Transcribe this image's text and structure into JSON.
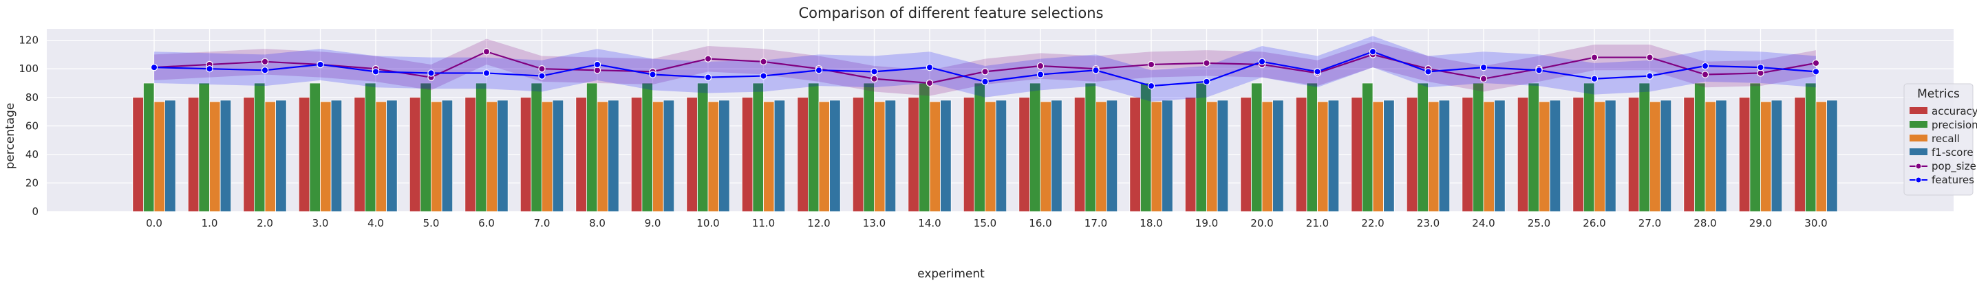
{
  "chart_data": {
    "type": "bar",
    "title": "Comparison of different feature selections",
    "xlabel": "experiment",
    "ylabel": "percentage",
    "ylim": [
      0,
      128
    ],
    "yticks": [
      0,
      20,
      40,
      60,
      80,
      100,
      120
    ],
    "categories": [
      "0.0",
      "1.0",
      "2.0",
      "3.0",
      "4.0",
      "5.0",
      "6.0",
      "7.0",
      "8.0",
      "9.0",
      "10.0",
      "11.0",
      "12.0",
      "13.0",
      "14.0",
      "15.0",
      "16.0",
      "17.0",
      "18.0",
      "19.0",
      "20.0",
      "21.0",
      "22.0",
      "23.0",
      "24.0",
      "25.0",
      "26.0",
      "27.0",
      "28.0",
      "29.0",
      "30.0"
    ],
    "grid": true,
    "background": "#eaeaf2",
    "legend": {
      "title": "Metrics",
      "placement": "right"
    },
    "series": [
      {
        "name": "accuracy",
        "kind": "bar",
        "color": "#c03d3e",
        "values": [
          80,
          80,
          80,
          80,
          80,
          80,
          80,
          80,
          80,
          80,
          80,
          80,
          80,
          80,
          80,
          80,
          80,
          80,
          80,
          80,
          80,
          80,
          80,
          80,
          80,
          80,
          80,
          80,
          80,
          80,
          80
        ]
      },
      {
        "name": "precision",
        "kind": "bar",
        "color": "#3a923a",
        "values": [
          90,
          90,
          90,
          90,
          90,
          90,
          90,
          90,
          90,
          90,
          90,
          90,
          90,
          90,
          90,
          90,
          90,
          90,
          90,
          90,
          90,
          90,
          90,
          90,
          90,
          90,
          90,
          90,
          90,
          90,
          90
        ]
      },
      {
        "name": "recall",
        "kind": "bar",
        "color": "#e1812c",
        "values": [
          77,
          77,
          77,
          77,
          77,
          77,
          77,
          77,
          77,
          77,
          77,
          77,
          77,
          77,
          77,
          77,
          77,
          77,
          77,
          77,
          77,
          77,
          77,
          77,
          77,
          77,
          77,
          77,
          77,
          77,
          77
        ]
      },
      {
        "name": "f1-score",
        "kind": "bar",
        "color": "#3274a1",
        "values": [
          78,
          78,
          78,
          78,
          78,
          78,
          78,
          78,
          78,
          78,
          78,
          78,
          78,
          78,
          78,
          78,
          78,
          78,
          78,
          78,
          78,
          78,
          78,
          78,
          78,
          78,
          78,
          78,
          78,
          78,
          78
        ]
      },
      {
        "name": "pop_size",
        "kind": "line",
        "color": "#800080",
        "values": [
          101,
          103,
          105,
          103,
          100,
          94,
          112,
          100,
          99,
          98,
          107,
          105,
          100,
          93,
          90,
          98,
          102,
          100,
          103,
          104,
          103,
          97,
          110,
          100,
          93,
          100,
          108,
          108,
          96,
          97,
          104
        ],
        "band": 9
      },
      {
        "name": "features",
        "kind": "line",
        "color": "#0000ff",
        "values": [
          101,
          100,
          99,
          103,
          98,
          97,
          97,
          95,
          103,
          96,
          94,
          95,
          99,
          98,
          101,
          91,
          96,
          99,
          88,
          91,
          105,
          98,
          112,
          98,
          101,
          99,
          93,
          95,
          102,
          101,
          98
        ],
        "band": 11
      }
    ]
  }
}
